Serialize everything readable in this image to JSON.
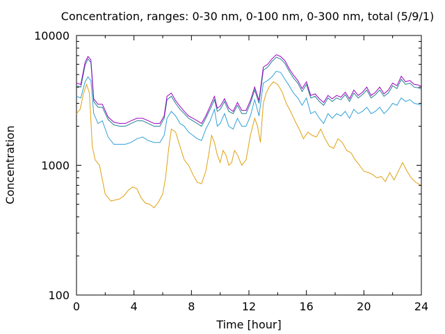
{
  "chart_data": {
    "type": "line",
    "title": "Concentration, ranges: 0-30 nm, 0-100 nm, 0-300 nm, total (5/9/1)",
    "xlabel": "Time [hour]",
    "ylabel": "Concentration",
    "xlim": [
      0,
      24
    ],
    "ylim": [
      100,
      10000
    ],
    "y_scale": "log",
    "grid": false,
    "legend": "none",
    "x_ticks": [
      0,
      4,
      8,
      12,
      16,
      20,
      24
    ],
    "x_tick_labels": [
      "0",
      "4",
      "8",
      "12",
      "16",
      "20",
      "24"
    ],
    "y_ticks": [
      100,
      1000,
      10000
    ],
    "y_tick_labels": [
      "100",
      "1000",
      "10000"
    ],
    "series": [
      {
        "color": "#e0a010",
        "x": [
          0,
          0.25,
          0.5,
          0.7,
          0.9,
          1.1,
          1.3,
          1.6,
          2.0,
          2.4,
          2.7,
          3.0,
          3.3,
          3.6,
          3.9,
          4.2,
          4.5,
          4.8,
          5.1,
          5.4,
          5.7,
          6.0,
          6.2,
          6.4,
          6.6,
          6.9,
          7.2,
          7.5,
          7.8,
          8.1,
          8.4,
          8.7,
          9.0,
          9.2,
          9.4,
          9.6,
          9.8,
          10.0,
          10.2,
          10.4,
          10.6,
          10.8,
          11.0,
          11.2,
          11.5,
          11.8,
          12.1,
          12.4,
          12.6,
          12.8,
          13.0,
          13.2,
          13.4,
          13.7,
          14.0,
          14.3,
          14.6,
          14.9,
          15.2,
          15.5,
          15.8,
          16.1,
          16.4,
          16.7,
          17.0,
          17.3,
          17.6,
          17.9,
          18.2,
          18.5,
          18.8,
          19.1,
          19.4,
          19.7,
          20.0,
          20.3,
          20.6,
          20.9,
          21.2,
          21.5,
          21.8,
          22.1,
          22.4,
          22.7,
          23.0,
          23.3,
          23.6,
          24.0
        ],
        "y": [
          2500,
          2700,
          3600,
          4200,
          3600,
          1400,
          1100,
          1000,
          600,
          530,
          540,
          550,
          580,
          640,
          680,
          660,
          560,
          510,
          500,
          470,
          520,
          600,
          800,
          1300,
          1900,
          1800,
          1400,
          1100,
          1000,
          850,
          740,
          720,
          900,
          1200,
          1700,
          1500,
          1200,
          1050,
          1300,
          1200,
          1000,
          1050,
          1300,
          1200,
          1000,
          1100,
          1700,
          2300,
          2000,
          1500,
          3000,
          3600,
          4000,
          4400,
          4200,
          3700,
          3000,
          2600,
          2200,
          1900,
          1600,
          1800,
          1700,
          1650,
          1900,
          1600,
          1400,
          1350,
          1600,
          1500,
          1300,
          1250,
          1100,
          1000,
          900,
          880,
          850,
          800,
          820,
          750,
          880,
          770,
          900,
          1050,
          900,
          800,
          740,
          700
        ]
      },
      {
        "color": "#30a0d8",
        "x": [
          0,
          0.3,
          0.6,
          0.8,
          1.0,
          1.2,
          1.5,
          1.8,
          2.2,
          2.6,
          3.0,
          3.4,
          3.8,
          4.2,
          4.6,
          5.0,
          5.4,
          5.8,
          6.1,
          6.3,
          6.6,
          6.9,
          7.2,
          7.5,
          7.8,
          8.1,
          8.4,
          8.7,
          9.0,
          9.3,
          9.6,
          9.8,
          10.0,
          10.3,
          10.6,
          10.9,
          11.2,
          11.5,
          11.8,
          12.1,
          12.4,
          12.7,
          13.0,
          13.3,
          13.6,
          13.9,
          14.2,
          14.5,
          14.8,
          15.1,
          15.4,
          15.7,
          16.0,
          16.3,
          16.6,
          16.9,
          17.2,
          17.5,
          17.8,
          18.1,
          18.4,
          18.7,
          19.0,
          19.3,
          19.6,
          19.9,
          20.2,
          20.5,
          20.8,
          21.1,
          21.4,
          21.7,
          22.0,
          22.3,
          22.6,
          22.9,
          23.2,
          23.5,
          23.8,
          24.0
        ],
        "y": [
          3400,
          3300,
          4400,
          4800,
          4500,
          2500,
          2100,
          2200,
          1650,
          1450,
          1450,
          1450,
          1500,
          1600,
          1650,
          1550,
          1500,
          1500,
          1700,
          2300,
          2600,
          2400,
          2100,
          2000,
          1800,
          1700,
          1600,
          1550,
          1900,
          2200,
          2700,
          2000,
          2100,
          2500,
          2000,
          1900,
          2300,
          2000,
          2000,
          2400,
          3200,
          2400,
          4300,
          4500,
          4800,
          5300,
          5200,
          4600,
          4100,
          3600,
          3300,
          2900,
          3300,
          2500,
          2600,
          2300,
          2100,
          2500,
          2300,
          2500,
          2400,
          2600,
          2300,
          2700,
          2500,
          2600,
          2800,
          2500,
          2600,
          2800,
          2500,
          2700,
          3000,
          2900,
          3300,
          3100,
          3200,
          3000,
          2950,
          2900
        ]
      },
      {
        "color": "#208090",
        "x": [
          0,
          0.3,
          0.6,
          0.8,
          1.0,
          1.2,
          1.5,
          1.8,
          2.2,
          2.6,
          3.0,
          3.4,
          3.8,
          4.2,
          4.6,
          5.0,
          5.4,
          5.8,
          6.1,
          6.3,
          6.6,
          6.9,
          7.2,
          7.5,
          7.8,
          8.1,
          8.4,
          8.7,
          9.0,
          9.3,
          9.6,
          9.8,
          10.0,
          10.3,
          10.6,
          10.9,
          11.2,
          11.5,
          11.8,
          12.1,
          12.4,
          12.7,
          13.0,
          13.3,
          13.6,
          13.9,
          14.2,
          14.5,
          14.8,
          15.1,
          15.4,
          15.7,
          16.0,
          16.3,
          16.6,
          16.9,
          17.2,
          17.5,
          17.8,
          18.1,
          18.4,
          18.7,
          19.0,
          19.3,
          19.6,
          19.9,
          20.2,
          20.5,
          20.8,
          21.1,
          21.4,
          21.7,
          22.0,
          22.3,
          22.6,
          22.9,
          23.2,
          23.5,
          23.8,
          24.0
        ],
        "y": [
          4100,
          4000,
          5900,
          6600,
          6200,
          3100,
          2800,
          2800,
          2250,
          2050,
          2000,
          2000,
          2100,
          2200,
          2200,
          2100,
          2000,
          2000,
          2300,
          3200,
          3400,
          3000,
          2700,
          2500,
          2300,
          2200,
          2100,
          2000,
          2300,
          2700,
          3200,
          2600,
          2700,
          3100,
          2600,
          2500,
          2900,
          2500,
          2500,
          3000,
          3800,
          3000,
          5400,
          5700,
          6300,
          6800,
          6600,
          6100,
          5300,
          4700,
          4300,
          3700,
          4200,
          3300,
          3400,
          3100,
          2900,
          3300,
          3100,
          3300,
          3200,
          3500,
          3100,
          3600,
          3300,
          3500,
          3800,
          3300,
          3500,
          3800,
          3400,
          3600,
          4100,
          3900,
          4600,
          4200,
          4300,
          4000,
          3950,
          3850
        ]
      },
      {
        "color": "#9a00c0",
        "x": [
          0,
          0.3,
          0.6,
          0.8,
          1.0,
          1.2,
          1.5,
          1.8,
          2.2,
          2.6,
          3.0,
          3.4,
          3.8,
          4.2,
          4.6,
          5.0,
          5.4,
          5.8,
          6.1,
          6.3,
          6.6,
          6.9,
          7.2,
          7.5,
          7.8,
          8.1,
          8.4,
          8.7,
          9.0,
          9.3,
          9.6,
          9.8,
          10.0,
          10.3,
          10.6,
          10.9,
          11.2,
          11.5,
          11.8,
          12.1,
          12.4,
          12.7,
          13.0,
          13.3,
          13.6,
          13.9,
          14.2,
          14.5,
          14.8,
          15.1,
          15.4,
          15.7,
          16.0,
          16.3,
          16.6,
          16.9,
          17.2,
          17.5,
          17.8,
          18.1,
          18.4,
          18.7,
          19.0,
          19.3,
          19.6,
          19.9,
          20.2,
          20.5,
          20.8,
          21.1,
          21.4,
          21.7,
          22.0,
          22.3,
          22.6,
          22.9,
          23.2,
          23.5,
          23.8,
          24.0
        ],
        "y": [
          4300,
          4200,
          6200,
          6900,
          6500,
          3250,
          2950,
          2950,
          2350,
          2150,
          2100,
          2100,
          2200,
          2300,
          2300,
          2200,
          2100,
          2100,
          2400,
          3400,
          3600,
          3150,
          2850,
          2600,
          2400,
          2300,
          2200,
          2100,
          2400,
          2850,
          3400,
          2750,
          2850,
          3250,
          2750,
          2600,
          3050,
          2650,
          2650,
          3150,
          4000,
          3150,
          5700,
          6000,
          6600,
          7100,
          6900,
          6400,
          5550,
          4950,
          4500,
          3900,
          4400,
          3450,
          3550,
          3250,
          3050,
          3450,
          3250,
          3450,
          3350,
          3650,
          3250,
          3800,
          3450,
          3650,
          4000,
          3450,
          3650,
          4000,
          3550,
          3800,
          4300,
          4100,
          4850,
          4400,
          4500,
          4200,
          4150,
          4050
        ]
      }
    ]
  }
}
